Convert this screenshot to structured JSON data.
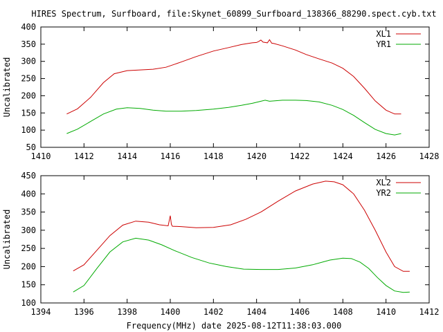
{
  "figure": {
    "title": "HIRES Spectrum, Surfboard, file:Skynet_60899_Surfboard_138366_88290.spect.cyb.txt",
    "footer": "Frequency(MHz) date 2025-08-12T11:38:03.000"
  },
  "chart_data": [
    {
      "type": "line",
      "title": "",
      "xlabel": "",
      "ylabel": "Uncalibrated",
      "xlim": [
        1410,
        1428
      ],
      "ylim": [
        50,
        400
      ],
      "xticks": [
        1410,
        1412,
        1414,
        1416,
        1418,
        1420,
        1422,
        1424,
        1426,
        1428
      ],
      "yticks": [
        50,
        100,
        150,
        200,
        250,
        300,
        350,
        400
      ],
      "grid": false,
      "legend": "top-right",
      "series": [
        {
          "name": "XL1",
          "color": "#cc0000",
          "x": [
            1411.2,
            1411.7,
            1412.3,
            1412.9,
            1413.4,
            1414.0,
            1414.6,
            1415.2,
            1415.8,
            1416.5,
            1417.2,
            1418.0,
            1418.7,
            1419.3,
            1419.8,
            1420.0,
            1420.1,
            1420.2,
            1420.3,
            1420.4,
            1420.5,
            1420.6,
            1420.7,
            1420.8,
            1421.2,
            1421.8,
            1422.3,
            1422.9,
            1423.5,
            1424.0,
            1424.5,
            1425.0,
            1425.5,
            1426.0,
            1426.4,
            1426.7
          ],
          "values": [
            147,
            162,
            195,
            238,
            264,
            273,
            275,
            277,
            283,
            298,
            314,
            330,
            340,
            349,
            354,
            355,
            358,
            362,
            356,
            355,
            354,
            363,
            353,
            352,
            345,
            333,
            320,
            307,
            295,
            280,
            256,
            222,
            185,
            158,
            147,
            147
          ]
        },
        {
          "name": "YR1",
          "color": "#00aa00",
          "x": [
            1411.2,
            1411.7,
            1412.3,
            1412.9,
            1413.5,
            1414.0,
            1414.6,
            1415.2,
            1415.8,
            1416.5,
            1417.2,
            1418.0,
            1418.7,
            1419.3,
            1419.8,
            1420.2,
            1420.4,
            1420.6,
            1420.8,
            1421.2,
            1421.8,
            1422.3,
            1422.9,
            1423.5,
            1424.0,
            1424.5,
            1425.0,
            1425.5,
            1426.0,
            1426.4,
            1426.7
          ],
          "values": [
            90,
            103,
            125,
            147,
            161,
            165,
            163,
            158,
            155,
            155,
            157,
            161,
            166,
            172,
            178,
            184,
            187,
            184,
            185,
            187,
            187,
            186,
            182,
            172,
            160,
            143,
            122,
            102,
            90,
            86,
            90
          ]
        }
      ]
    },
    {
      "type": "line",
      "title": "",
      "xlabel": "Frequency(MHz) date 2025-08-12T11:38:03.000",
      "ylabel": "Uncalibrated",
      "xlim": [
        1394,
        1412
      ],
      "ylim": [
        100,
        450
      ],
      "xticks": [
        1394,
        1396,
        1398,
        1400,
        1402,
        1404,
        1406,
        1408,
        1410,
        1412
      ],
      "yticks": [
        100,
        150,
        200,
        250,
        300,
        350,
        400,
        450
      ],
      "grid": false,
      "legend": "top-right",
      "series": [
        {
          "name": "XL2",
          "color": "#cc0000",
          "x": [
            1395.5,
            1396.0,
            1396.6,
            1397.2,
            1397.8,
            1398.4,
            1399.0,
            1399.5,
            1399.9,
            1400.0,
            1400.05,
            1400.1,
            1400.5,
            1401.2,
            1402.0,
            1402.8,
            1403.5,
            1404.2,
            1405.0,
            1405.8,
            1406.6,
            1407.2,
            1407.6,
            1408.0,
            1408.5,
            1409.0,
            1409.5,
            1410.0,
            1410.4,
            1410.8,
            1411.1
          ],
          "values": [
            188,
            205,
            245,
            285,
            314,
            325,
            322,
            315,
            312,
            340,
            316,
            311,
            310,
            307,
            308,
            315,
            330,
            350,
            380,
            408,
            427,
            435,
            433,
            425,
            400,
            355,
            300,
            240,
            200,
            187,
            187
          ]
        },
        {
          "name": "YR2",
          "color": "#00aa00",
          "x": [
            1395.5,
            1396.0,
            1396.6,
            1397.2,
            1397.8,
            1398.4,
            1399.0,
            1399.6,
            1400.2,
            1401.0,
            1401.8,
            1402.6,
            1403.4,
            1404.2,
            1405.0,
            1405.8,
            1406.6,
            1407.4,
            1408.0,
            1408.4,
            1408.8,
            1409.2,
            1409.6,
            1410.0,
            1410.4,
            1410.8,
            1411.1
          ],
          "values": [
            130,
            148,
            195,
            240,
            268,
            278,
            273,
            260,
            244,
            225,
            210,
            200,
            193,
            192,
            192,
            196,
            205,
            218,
            223,
            222,
            212,
            195,
            170,
            148,
            133,
            129,
            130
          ]
        }
      ]
    }
  ]
}
